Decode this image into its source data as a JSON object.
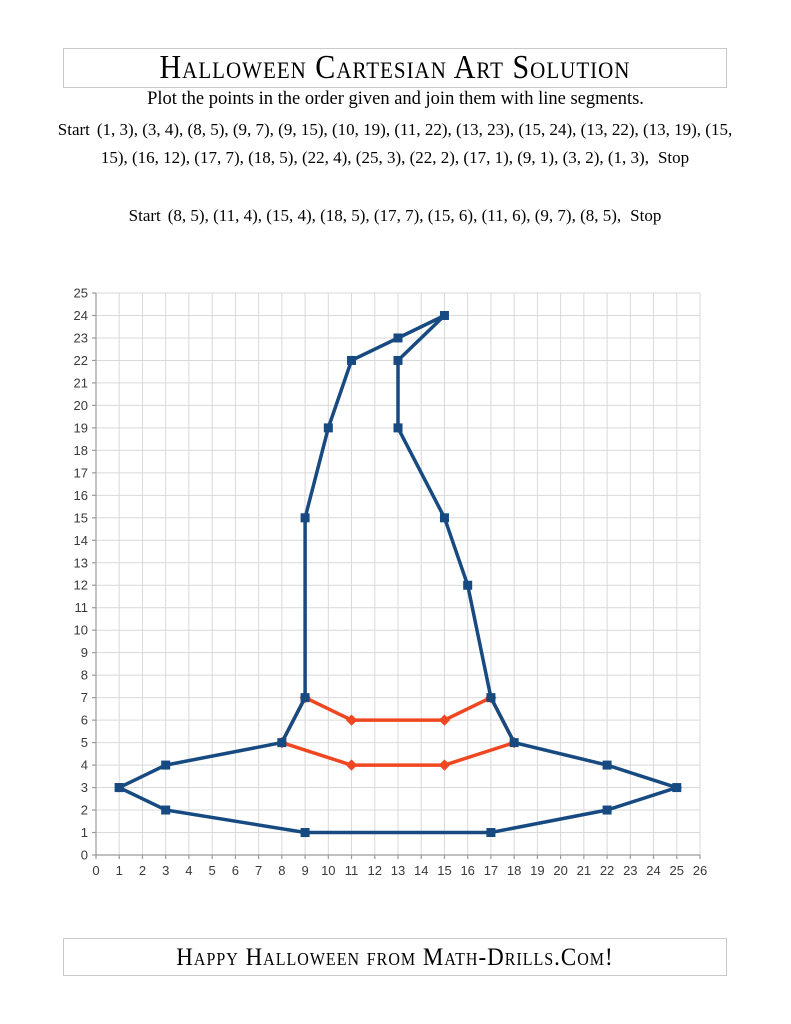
{
  "header": {
    "title": "Halloween Cartesian Art Solution"
  },
  "instruction": "Plot the points in the order given and join them with line segments.",
  "sequences": [
    {
      "start_label": "Start",
      "points_text": "(1, 3), (3, 4), (8, 5), (9, 7), (9, 15), (10, 19), (11, 22), (13, 23), (15, 24), (13, 22), (13, 19), (15, 15), (16, 12), (17, 7), (18, 5), (22, 4), (25, 3), (22, 2), (17, 1), (9, 1), (3, 2), (1, 3),",
      "stop_label": "Stop"
    },
    {
      "start_label": "Start",
      "points_text": "(8, 5), (11, 4), (15, 4), (18, 5), (17, 7), (15, 6), (11, 6), (9, 7), (8, 5),",
      "stop_label": "Stop"
    }
  ],
  "footer": {
    "text": "Happy Halloween from Math-Drills.Com!"
  },
  "chart_data": {
    "type": "line",
    "title": "",
    "xlabel": "",
    "ylabel": "",
    "xlim": [
      0,
      26
    ],
    "ylim": [
      0,
      25
    ],
    "grid": true,
    "legend": "none",
    "x_tick_labels": [
      "0",
      "1",
      "2",
      "3",
      "4",
      "5",
      "6",
      "7",
      "8",
      "9",
      "10",
      "11",
      "12",
      "13",
      "14",
      "15",
      "16",
      "17",
      "18",
      "19",
      "20",
      "21",
      "22",
      "23",
      "24",
      "25",
      "26"
    ],
    "y_tick_labels": [
      "0",
      "1",
      "2",
      "3",
      "4",
      "5",
      "6",
      "7",
      "8",
      "9",
      "10",
      "11",
      "12",
      "13",
      "14",
      "15",
      "16",
      "17",
      "18",
      "19",
      "20",
      "21",
      "22",
      "23",
      "24",
      "25"
    ],
    "colors": {
      "grid": "#d9d9d9",
      "axis": "#9b9b9b",
      "tick_text": "#3a3a3a",
      "outline_series": "#164a80",
      "band_series": "#ef4722"
    },
    "series": [
      {
        "name": "hat-outline",
        "color": "#164a80",
        "marker": "square",
        "points": [
          [
            1,
            3
          ],
          [
            3,
            4
          ],
          [
            8,
            5
          ],
          [
            9,
            7
          ],
          [
            9,
            15
          ],
          [
            10,
            19
          ],
          [
            11,
            22
          ],
          [
            13,
            23
          ],
          [
            15,
            24
          ],
          [
            13,
            22
          ],
          [
            13,
            19
          ],
          [
            15,
            15
          ],
          [
            16,
            12
          ],
          [
            17,
            7
          ],
          [
            18,
            5
          ],
          [
            22,
            4
          ],
          [
            25,
            3
          ],
          [
            22,
            2
          ],
          [
            17,
            1
          ],
          [
            9,
            1
          ],
          [
            3,
            2
          ],
          [
            1,
            3
          ]
        ]
      },
      {
        "name": "hat-band",
        "color": "#ef4722",
        "marker": "diamond",
        "points": [
          [
            8,
            5
          ],
          [
            11,
            4
          ],
          [
            15,
            4
          ],
          [
            18,
            5
          ],
          [
            17,
            7
          ],
          [
            15,
            6
          ],
          [
            11,
            6
          ],
          [
            9,
            7
          ],
          [
            8,
            5
          ]
        ]
      }
    ]
  }
}
